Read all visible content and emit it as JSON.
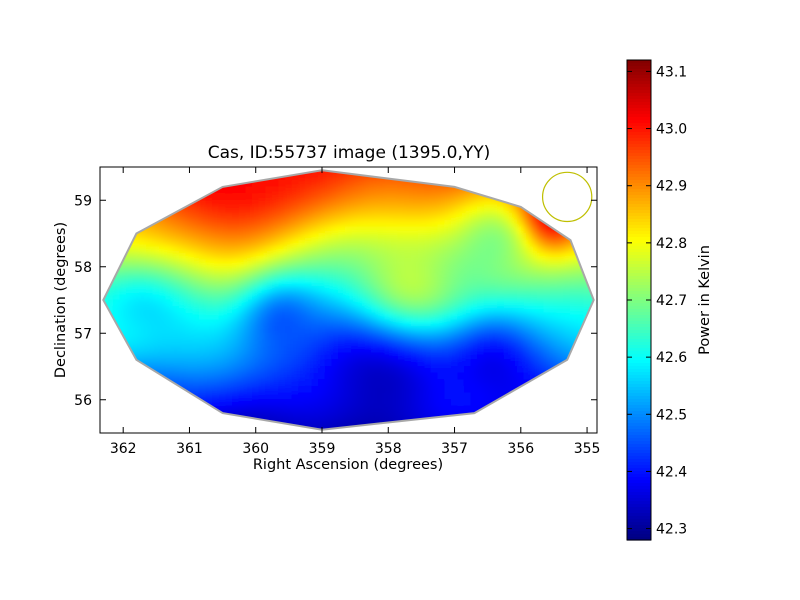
{
  "chart_data": {
    "type": "heatmap",
    "title": "Cas, ID:55737 image (1395.0,YY)",
    "xlabel": "Right Ascension (degrees)",
    "ylabel": "Declination (degrees)",
    "xlim": [
      362.35,
      354.85
    ],
    "ylim": [
      55.5,
      59.5
    ],
    "x_ticks": [
      362,
      361,
      360,
      359,
      358,
      357,
      356,
      355
    ],
    "x_tick_labels": [
      "362",
      "361",
      "360",
      "359",
      "358",
      "357",
      "356",
      "355"
    ],
    "y_ticks": [
      56,
      57,
      58,
      59
    ],
    "y_tick_labels": [
      "56",
      "57",
      "58",
      "59"
    ],
    "colormap": "jet",
    "colorbar": {
      "label": "Power in Kelvin",
      "range": [
        42.28,
        43.12
      ],
      "ticks": [
        42.3,
        42.4,
        42.5,
        42.6,
        42.7,
        42.8,
        42.9,
        43.0,
        43.1
      ],
      "tick_labels": [
        "42.3",
        "42.4",
        "42.5",
        "42.6",
        "42.7",
        "42.8",
        "42.9",
        "43.0",
        "43.1"
      ]
    },
    "footprint_outline": [
      [
        359.0,
        59.45
      ],
      [
        357.0,
        59.2
      ],
      [
        356.0,
        58.9
      ],
      [
        355.25,
        58.4
      ],
      [
        354.9,
        57.5
      ],
      [
        355.3,
        56.6
      ],
      [
        356.7,
        55.8
      ],
      [
        359.0,
        55.55
      ],
      [
        360.5,
        55.8
      ],
      [
        361.8,
        56.6
      ],
      [
        362.3,
        57.5
      ],
      [
        361.8,
        58.5
      ],
      [
        360.5,
        59.2
      ]
    ],
    "beam_marker": {
      "center": [
        355.3,
        59.05
      ],
      "radius_deg": 0.37,
      "color": "#bfbf00"
    },
    "surface_features": [
      {
        "x": 360.4,
        "y": 59.2,
        "value": 43.02,
        "spread": 0.7
      },
      {
        "x": 355.6,
        "y": 58.8,
        "value": 43.08,
        "spread": 0.35
      },
      {
        "x": 358.3,
        "y": 56.2,
        "value": 42.33,
        "spread": 0.9
      },
      {
        "x": 356.5,
        "y": 56.6,
        "value": 42.36,
        "spread": 0.55
      },
      {
        "x": 357.5,
        "y": 57.9,
        "value": 42.75,
        "spread": 0.6
      },
      {
        "x": 356.4,
        "y": 58.3,
        "value": 42.7,
        "spread": 0.45
      },
      {
        "x": 361.8,
        "y": 57.3,
        "value": 42.58,
        "spread": 0.5
      },
      {
        "x": 359.6,
        "y": 57.2,
        "value": 42.47,
        "spread": 0.45
      }
    ]
  }
}
